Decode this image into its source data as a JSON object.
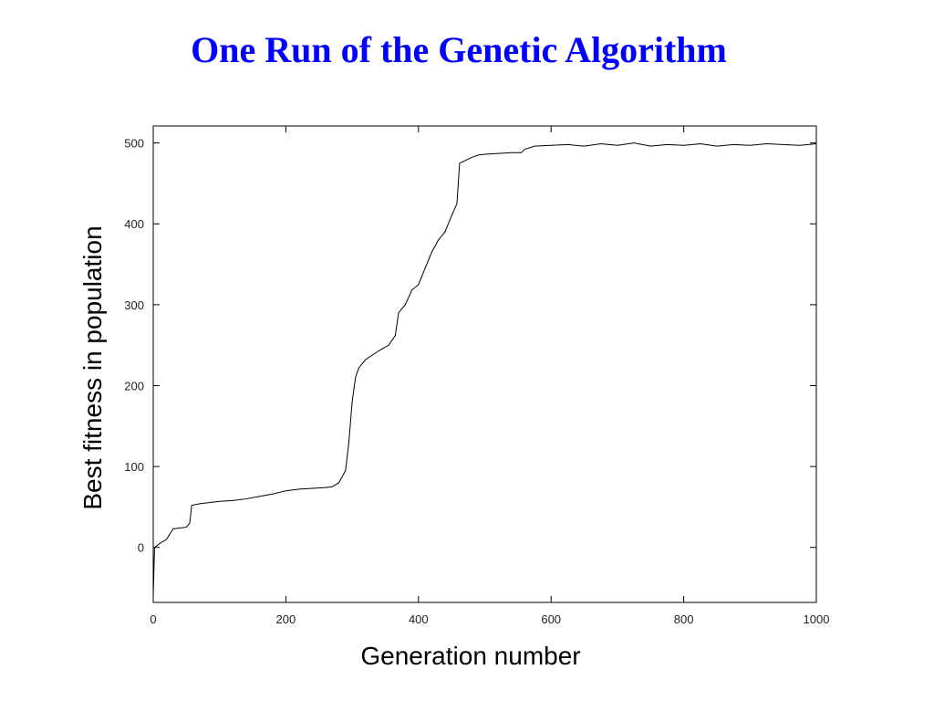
{
  "chart_data": {
    "type": "line",
    "title": "One Run of the Genetic Algorithm",
    "title_color": "#0000ff",
    "x_label": "Generation number",
    "y_label": "Best fitness in population",
    "color": "#000000",
    "x": [
      0,
      2,
      10,
      20,
      30,
      40,
      50,
      55,
      58,
      70,
      80,
      100,
      120,
      140,
      160,
      180,
      200,
      220,
      240,
      260,
      270,
      280,
      290,
      295,
      300,
      305,
      310,
      320,
      340,
      355,
      365,
      370,
      380,
      390,
      400,
      410,
      420,
      430,
      440,
      450,
      458,
      462,
      470,
      480,
      490,
      500,
      520,
      540,
      555,
      560,
      575,
      600,
      625,
      650,
      675,
      700,
      725,
      750,
      775,
      800,
      825,
      850,
      875,
      900,
      925,
      950,
      975,
      1000
    ],
    "values": [
      -60,
      0,
      5,
      10,
      23,
      24,
      25,
      30,
      52,
      54,
      55,
      57,
      58,
      60,
      63,
      66,
      70,
      72,
      73,
      74,
      75,
      80,
      95,
      130,
      180,
      210,
      222,
      232,
      243,
      250,
      262,
      290,
      300,
      318,
      325,
      345,
      365,
      380,
      390,
      410,
      425,
      475,
      478,
      482,
      485,
      486,
      487,
      488,
      488,
      492,
      496,
      497,
      498,
      496,
      499,
      497,
      500,
      496,
      498,
      497,
      499,
      496,
      498,
      497,
      499,
      498,
      497,
      499
    ],
    "xlim": [
      0,
      1000
    ],
    "ylim": [
      -68,
      521
    ],
    "xticks": [
      0,
      200,
      400,
      600,
      800,
      1000
    ],
    "yticks": [
      0,
      100,
      200,
      300,
      400,
      500
    ]
  }
}
